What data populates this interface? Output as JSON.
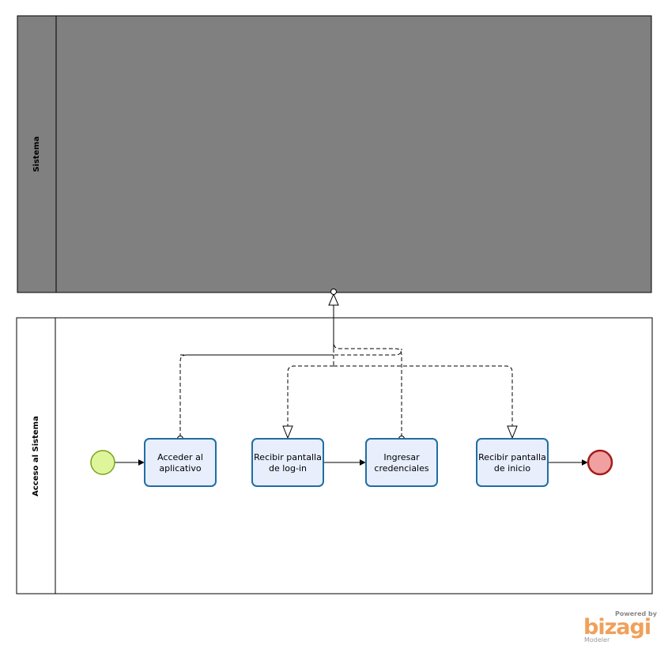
{
  "pools": {
    "top": {
      "label": "Sistema",
      "fill": "#808080"
    },
    "bottom": {
      "label": "Acceso al Sistema",
      "fill": "#ffffff"
    }
  },
  "tasks": [
    {
      "id": "t1",
      "line1": "Acceder al",
      "line2": "aplicativo"
    },
    {
      "id": "t2",
      "line1": "Recibir pantalla",
      "line2": "de log-in"
    },
    {
      "id": "t3",
      "line1": "Ingresar",
      "line2": "credenciales"
    },
    {
      "id": "t4",
      "line1": "Recibir pantalla",
      "line2": "de inicio"
    }
  ],
  "colors": {
    "task_fill": "#e8eefb",
    "task_stroke": "#1f6ea3",
    "start_fill": "#dff59a",
    "start_stroke": "#7aa21a",
    "end_fill": "#f0a0a0",
    "end_stroke": "#a51b1b"
  },
  "branding": {
    "powered": "Powered by",
    "logo": "bizagi",
    "product": "Modeler"
  }
}
